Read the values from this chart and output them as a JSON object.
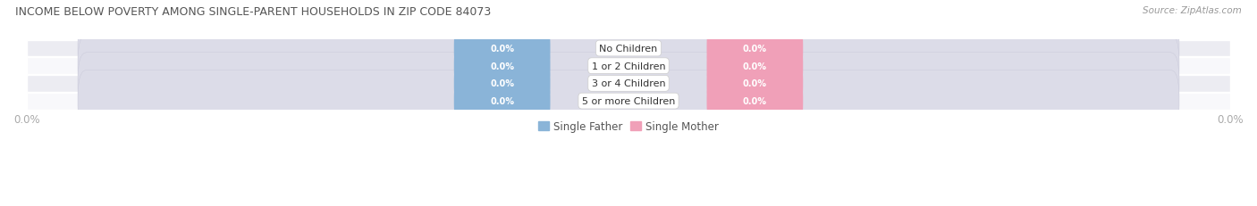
{
  "title": "INCOME BELOW POVERTY AMONG SINGLE-PARENT HOUSEHOLDS IN ZIP CODE 84073",
  "source": "Source: ZipAtlas.com",
  "categories": [
    "No Children",
    "1 or 2 Children",
    "3 or 4 Children",
    "5 or more Children"
  ],
  "father_values": [
    0.0,
    0.0,
    0.0,
    0.0
  ],
  "mother_values": [
    0.0,
    0.0,
    0.0,
    0.0
  ],
  "father_color": "#8ab4d8",
  "mother_color": "#f0a0b8",
  "row_bg_color": "#ececf2",
  "row_bg_color2": "#f8f8fb",
  "title_color": "#555555",
  "axis_tick_color": "#aaaaaa",
  "category_label_color": "#333333",
  "value_label_color": "#ffffff",
  "xlim_left": -100,
  "xlim_right": 100,
  "x_tick_left_label": "0.0%",
  "x_tick_right_label": "0.0%",
  "figsize": [
    14.06,
    2.32
  ],
  "dpi": 100
}
